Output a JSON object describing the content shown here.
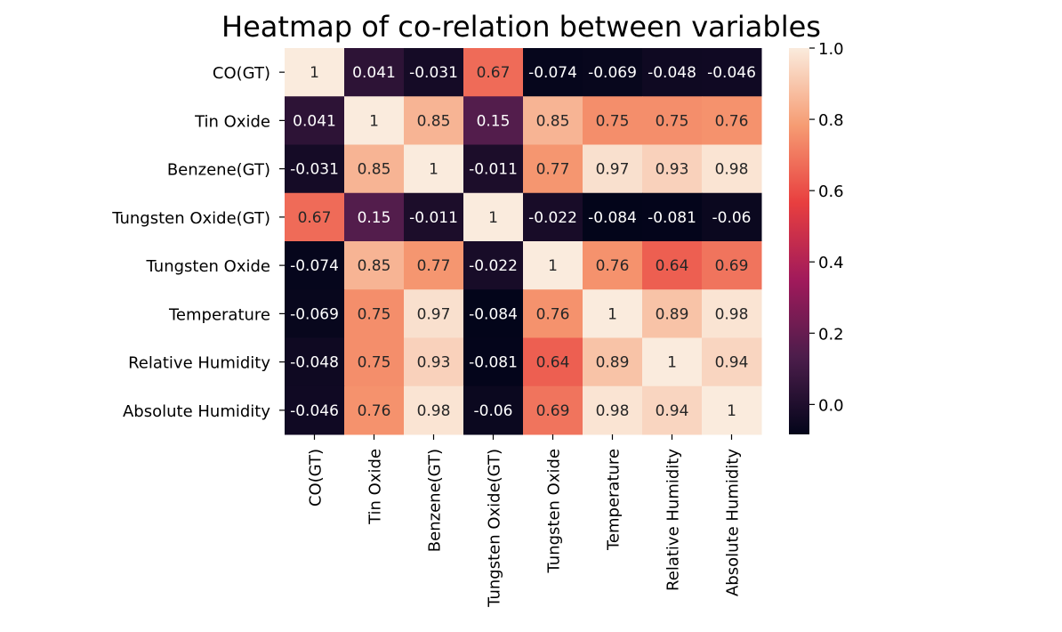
{
  "chart_data": {
    "type": "heatmap",
    "title": "Heatmap of co-relation between variables",
    "row_labels": [
      "CO(GT)",
      "Tin Oxide",
      "Benzene(GT)",
      "Tungsten Oxide(GT)",
      "Tungsten Oxide",
      "Temperature",
      "Relative Humidity",
      "Absolute Humidity"
    ],
    "col_labels": [
      "CO(GT)",
      "Tin Oxide",
      "Benzene(GT)",
      "Tungsten Oxide(GT)",
      "Tungsten Oxide",
      "Temperature",
      "Relative Humidity",
      "Absolute Humidity"
    ],
    "values": [
      [
        1,
        0.041,
        -0.031,
        0.67,
        -0.074,
        -0.069,
        -0.048,
        -0.046
      ],
      [
        0.041,
        1,
        0.85,
        0.15,
        0.85,
        0.75,
        0.75,
        0.76
      ],
      [
        -0.031,
        0.85,
        1,
        -0.011,
        0.77,
        0.97,
        0.93,
        0.98
      ],
      [
        0.67,
        0.15,
        -0.011,
        1,
        -0.022,
        -0.084,
        -0.081,
        -0.06
      ],
      [
        -0.074,
        0.85,
        0.77,
        -0.022,
        1,
        0.76,
        0.64,
        0.69
      ],
      [
        -0.069,
        0.75,
        0.97,
        -0.084,
        0.76,
        1,
        0.89,
        0.98
      ],
      [
        -0.048,
        0.75,
        0.93,
        -0.081,
        0.64,
        0.89,
        1,
        0.94
      ],
      [
        -0.046,
        0.76,
        0.98,
        -0.06,
        0.69,
        0.98,
        0.94,
        1
      ]
    ],
    "cell_labels": [
      [
        "1",
        "0.041",
        "-0.031",
        "0.67",
        "-0.074",
        "-0.069",
        "-0.048",
        "-0.046"
      ],
      [
        "0.041",
        "1",
        "0.85",
        "0.15",
        "0.85",
        "0.75",
        "0.75",
        "0.76"
      ],
      [
        "-0.031",
        "0.85",
        "1",
        "-0.011",
        "0.77",
        "0.97",
        "0.93",
        "0.98"
      ],
      [
        "0.67",
        "0.15",
        "-0.011",
        "1",
        "-0.022",
        "-0.084",
        "-0.081",
        "-0.06"
      ],
      [
        "-0.074",
        "0.85",
        "0.77",
        "-0.022",
        "1",
        "0.76",
        "0.64",
        "0.69"
      ],
      [
        "-0.069",
        "0.75",
        "0.97",
        "-0.084",
        "0.76",
        "1",
        "0.89",
        "0.98"
      ],
      [
        "-0.048",
        "0.75",
        "0.93",
        "-0.081",
        "0.64",
        "0.89",
        "1",
        "0.94"
      ],
      [
        "-0.046",
        "0.76",
        "0.98",
        "-0.06",
        "0.69",
        "0.98",
        "0.94",
        "1"
      ]
    ],
    "colorbar": {
      "range": [
        -0.084,
        1.0
      ],
      "ticks": [
        0.0,
        0.2,
        0.4,
        0.6,
        0.8,
        1.0
      ],
      "tick_labels": [
        "0.0",
        "0.2",
        "0.4",
        "0.6",
        "0.8",
        "1.0"
      ],
      "colormap": "rocket",
      "stops": [
        "#03051A",
        "#4C1D4B",
        "#A11A5B",
        "#E83F3F",
        "#F69C73",
        "#FAEBDD"
      ]
    },
    "text_colors": {
      "light": "#FFFFFF",
      "dark": "#262626"
    },
    "grid": false
  }
}
